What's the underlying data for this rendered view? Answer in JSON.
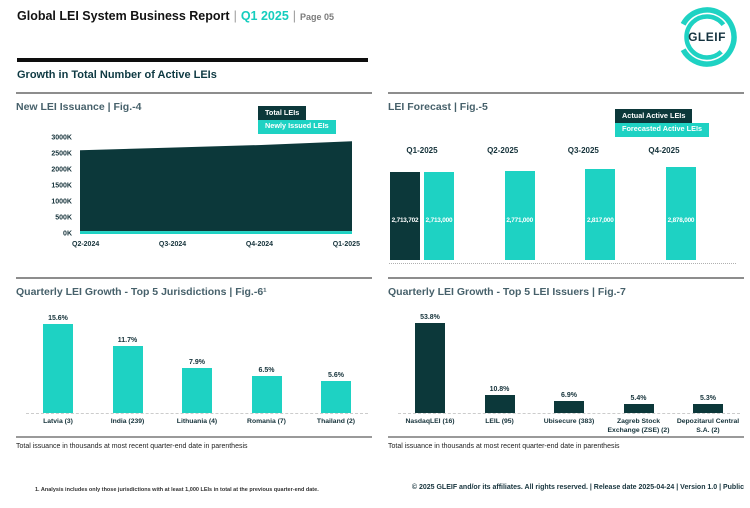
{
  "colors": {
    "teal": "#1ED2C3",
    "dark": "#0C383A"
  },
  "header": {
    "title": "Global LEI System Business Report",
    "divider": "|",
    "period": "Q1 2025",
    "divider2": "|",
    "page": "Page 05"
  },
  "logo": {
    "text": "GLEIF"
  },
  "section_heading": "Growth in Total Number of Active LEIs",
  "footnote": "1. Analysis includes only those jurisdictions with at least 1,000 LEIs in total at the previous quarter-end date.",
  "footer": "© 2025 GLEIF and/or its affiliates. All rights reserved. | Release date 2025-04-24 | Version 1.0 | Public",
  "chart_data": [
    {
      "id": "fig4",
      "type": "area",
      "title": "New LEI Issuance | Fig.-4",
      "legend": [
        {
          "label": "Total LEIs",
          "color": "#0C383A"
        },
        {
          "label": "Newly Issued LEIs",
          "color": "#1ED2C3"
        }
      ],
      "x": [
        "Q2-2024",
        "Q3-2024",
        "Q4-2024",
        "Q1-2025"
      ],
      "series": [
        {
          "name": "Total LEIs",
          "color": "#0C383A",
          "values_K": [
            2620,
            2700,
            2780,
            2900
          ]
        },
        {
          "name": "Newly Issued LEIs",
          "color": "#1ED2C3",
          "values_K": [
            90,
            90,
            90,
            90
          ]
        }
      ],
      "yticks": [
        "3000K",
        "2500K",
        "2000K",
        "1500K",
        "1000K",
        "500K",
        "0K"
      ],
      "ylim_K": [
        0,
        3000
      ],
      "grid": false
    },
    {
      "id": "fig5",
      "type": "bar",
      "title": "LEI Forecast | Fig.-5",
      "legend": [
        {
          "label": "Actual Active LEIs",
          "color": "#0C383A"
        },
        {
          "label": "Forecasted Active LEIs",
          "color": "#1ED2C3"
        }
      ],
      "categories": [
        "Q1-2025",
        "Q2-2025",
        "Q3-2025",
        "Q4-2025"
      ],
      "series": [
        {
          "name": "Actual Active LEIs",
          "color": "#0C383A",
          "values": [
            2713702,
            null,
            null,
            null
          ],
          "labels": [
            "2,713,702",
            null,
            null,
            null
          ]
        },
        {
          "name": "Forecasted Active LEIs",
          "color": "#1ED2C3",
          "values": [
            2713000,
            2771000,
            2817000,
            2878000
          ],
          "labels": [
            "2,713,000",
            "2,771,000",
            "2,817,000",
            "2,878,000"
          ]
        }
      ]
    },
    {
      "id": "fig6",
      "type": "bar",
      "title": "Quarterly LEI Growth - Top 5 Jurisdictions | Fig.-6¹",
      "categories": [
        "Latvia (3)",
        "India (239)",
        "Lithuania (4)",
        "Romania (7)",
        "Thailand (2)"
      ],
      "values": [
        15.6,
        11.7,
        7.9,
        6.5,
        5.6
      ],
      "labels": [
        "15.6%",
        "11.7%",
        "7.9%",
        "6.5%",
        "5.6%"
      ],
      "bar_color": "#1ED2C3",
      "ylim": [
        0,
        16.5
      ],
      "note": "Total issuance in thousands at most recent quarter-end date in parenthesis"
    },
    {
      "id": "fig7",
      "type": "bar",
      "title": "Quarterly LEI Growth - Top 5 LEI Issuers | Fig.-7",
      "categories": [
        "NasdaqLEI (16)",
        "LEIL (95)",
        "Ubisecure (383)",
        "Zagreb Stock Exchange (ZSE) (2)",
        "Depozitarul Central S.A. (2)"
      ],
      "values": [
        53.8,
        10.8,
        6.9,
        5.4,
        5.3
      ],
      "labels": [
        "53.8%",
        "10.8%",
        "6.9%",
        "5.4%",
        "5.3%"
      ],
      "bar_color": "#0C383A",
      "ylim": [
        0,
        56
      ],
      "note": "Total issuance in thousands at most recent quarter-end date in parenthesis"
    }
  ]
}
